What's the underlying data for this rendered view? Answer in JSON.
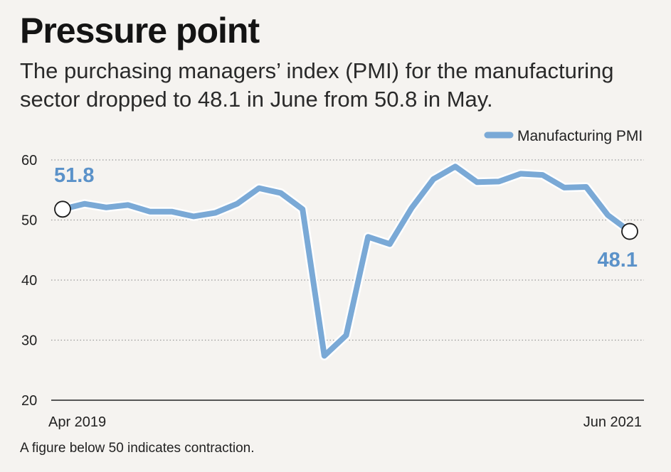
{
  "title": "Pressure point",
  "subtitle": "The purchasing managers’ index (PMI) for the manufacturing sector dropped to 48.1 in June from 50.8 in May.",
  "footnote": "A figure below 50 indicates contraction.",
  "colors": {
    "line": "#7aa9d6",
    "label": "#5b92c9",
    "grid": "#999999",
    "background": "#f5f3f0"
  },
  "chart_data": {
    "type": "line",
    "title": "Pressure point",
    "xlabel": "",
    "ylabel": "",
    "ylim": [
      20,
      60
    ],
    "yticks": [
      20,
      30,
      40,
      50,
      60
    ],
    "x_tick_labels": [
      "Apr 2019",
      "Jun 2021"
    ],
    "grid": true,
    "legend_position": "top-right",
    "series": [
      {
        "name": "Manufacturing PMI",
        "x": [
          "Apr 2019",
          "May 2019",
          "Jun 2019",
          "Jul 2019",
          "Aug 2019",
          "Sep 2019",
          "Oct 2019",
          "Nov 2019",
          "Dec 2019",
          "Jan 2020",
          "Feb 2020",
          "Mar 2020",
          "Apr 2020",
          "May 2020",
          "Jun 2020",
          "Jul 2020",
          "Aug 2020",
          "Sep 2020",
          "Oct 2020",
          "Nov 2020",
          "Dec 2020",
          "Jan 2021",
          "Feb 2021",
          "Mar 2021",
          "Apr 2021",
          "May 2021",
          "Jun 2021"
        ],
        "values": [
          51.8,
          52.7,
          52.1,
          52.5,
          51.4,
          51.4,
          50.6,
          51.2,
          52.7,
          55.3,
          54.5,
          51.8,
          27.4,
          30.8,
          47.2,
          46.0,
          52.0,
          56.8,
          58.9,
          56.3,
          56.4,
          57.7,
          57.5,
          55.4,
          55.5,
          50.8,
          48.1
        ]
      }
    ],
    "annotations": [
      {
        "label": "51.8",
        "point": "Apr 2019"
      },
      {
        "label": "48.1",
        "point": "Jun 2021"
      }
    ]
  }
}
